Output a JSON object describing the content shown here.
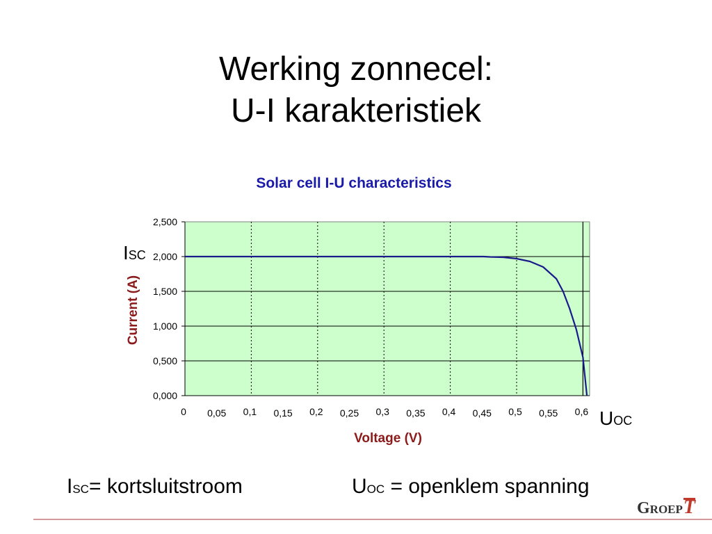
{
  "slide": {
    "title_line1": "Werking zonnecel:",
    "title_line2": "U-I karakteristiek"
  },
  "annotations": {
    "isc": {
      "main": "I",
      "sub": "SC"
    },
    "uoc": {
      "main": "U",
      "sub": "OC"
    }
  },
  "captions": {
    "isc": {
      "main": "I",
      "sub": "SC",
      "text": "= kortsluitstroom"
    },
    "uoc": {
      "main": "U",
      "sub": "OC",
      "text": " = openklem spanning"
    }
  },
  "logo": {
    "text_g": "G",
    "text_rest": "ROEP",
    "text_t": "T"
  },
  "colors": {
    "plot_bg": "#ccffcc",
    "curve": "#1a1a8c",
    "chart_title": "#1a1aa8",
    "axis_label": "#8b1a1a",
    "footer_rule": "#d49a9a"
  },
  "chart_data": {
    "type": "line",
    "title": "Solar cell I-U characteristics",
    "xlabel": "Voltage (V)",
    "ylabel": "Current (A)",
    "xlim": [
      0,
      0.61
    ],
    "ylim": [
      0,
      2.5
    ],
    "x_ticks": [
      0,
      0.05,
      0.1,
      0.15,
      0.2,
      0.25,
      0.3,
      0.35,
      0.4,
      0.45,
      0.5,
      0.55,
      0.6
    ],
    "x_tick_labels": [
      "0",
      "0,05",
      "0,1",
      "0,15",
      "0,2",
      "0,25",
      "0,3",
      "0,35",
      "0,4",
      "0,45",
      "0,5",
      "0,55",
      "0,6"
    ],
    "y_ticks": [
      0,
      0.5,
      1.0,
      1.5,
      2.0,
      2.5
    ],
    "y_tick_labels": [
      "0,000",
      "0,500",
      "1,000",
      "1,500",
      "2,000",
      "2,500"
    ],
    "x_gridlines_dotted": [
      0.1,
      0.2,
      0.3,
      0.4,
      0.5
    ],
    "x_gridlines_solid": [
      0.6
    ],
    "y_gridlines": [
      0.5,
      1.0,
      1.5,
      2.0
    ],
    "grid": true,
    "series": [
      {
        "x": [
          0,
          0.05,
          0.1,
          0.15,
          0.2,
          0.25,
          0.3,
          0.35,
          0.4,
          0.45,
          0.46,
          0.48,
          0.5,
          0.52,
          0.54,
          0.56,
          0.57,
          0.58,
          0.59,
          0.6,
          0.606
        ],
        "y": [
          2.0,
          2.0,
          2.0,
          2.0,
          2.0,
          2.0,
          2.0,
          2.0,
          2.0,
          2.0,
          1.995,
          1.99,
          1.97,
          1.93,
          1.85,
          1.68,
          1.5,
          1.25,
          0.95,
          0.55,
          0.0
        ]
      }
    ]
  }
}
